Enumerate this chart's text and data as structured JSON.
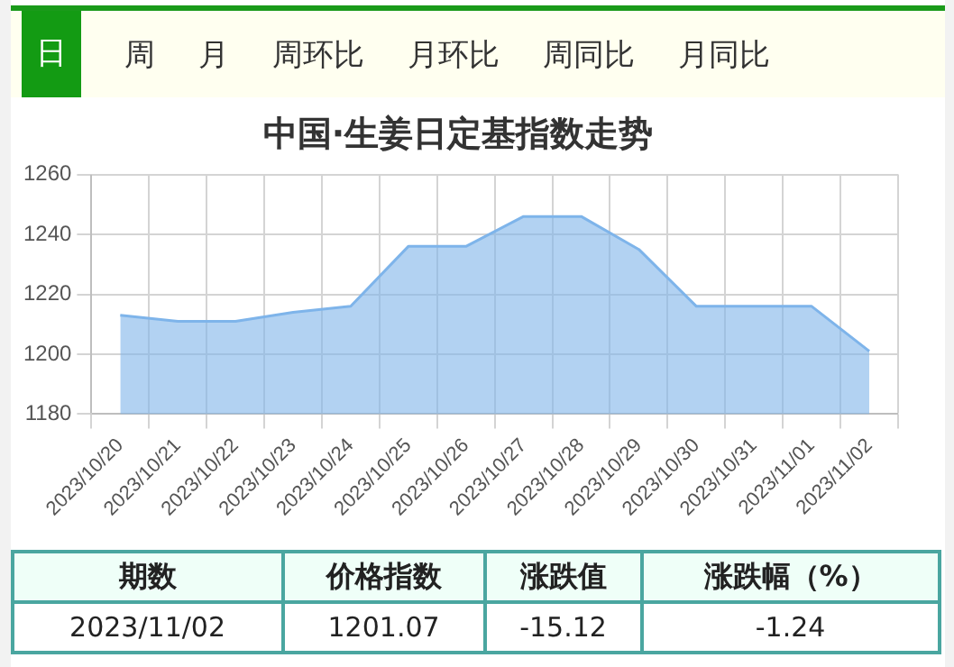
{
  "chart_data": {
    "type": "area",
    "title": "中国·生姜日定基指数走势",
    "categories": [
      "2023/10/20",
      "2023/10/21",
      "2023/10/22",
      "2023/10/23",
      "2023/10/24",
      "2023/10/25",
      "2023/10/26",
      "2023/10/27",
      "2023/10/28",
      "2023/10/29",
      "2023/10/30",
      "2023/10/31",
      "2023/11/01",
      "2023/11/02"
    ],
    "series": [
      {
        "color": "#7eb4ea",
        "values": [
          1213,
          1211,
          1211,
          1214,
          1216,
          1236,
          1236,
          1246,
          1246,
          1235,
          1216,
          1216,
          1216,
          1201
        ]
      }
    ],
    "ylim": [
      1180,
      1260
    ],
    "yticks": [
      1180,
      1200,
      1220,
      1240,
      1260
    ],
    "grid": true,
    "legend": false,
    "marker": "none",
    "annotations": [
      "日",
      "周",
      "月",
      "周环比",
      "月环比",
      "周同比",
      "月同比",
      "期数",
      "价格指数",
      "涨跌值",
      "涨跌幅（%）",
      "2023/11/02",
      "1201.07",
      "-15.12",
      "-1.24"
    ]
  }
}
